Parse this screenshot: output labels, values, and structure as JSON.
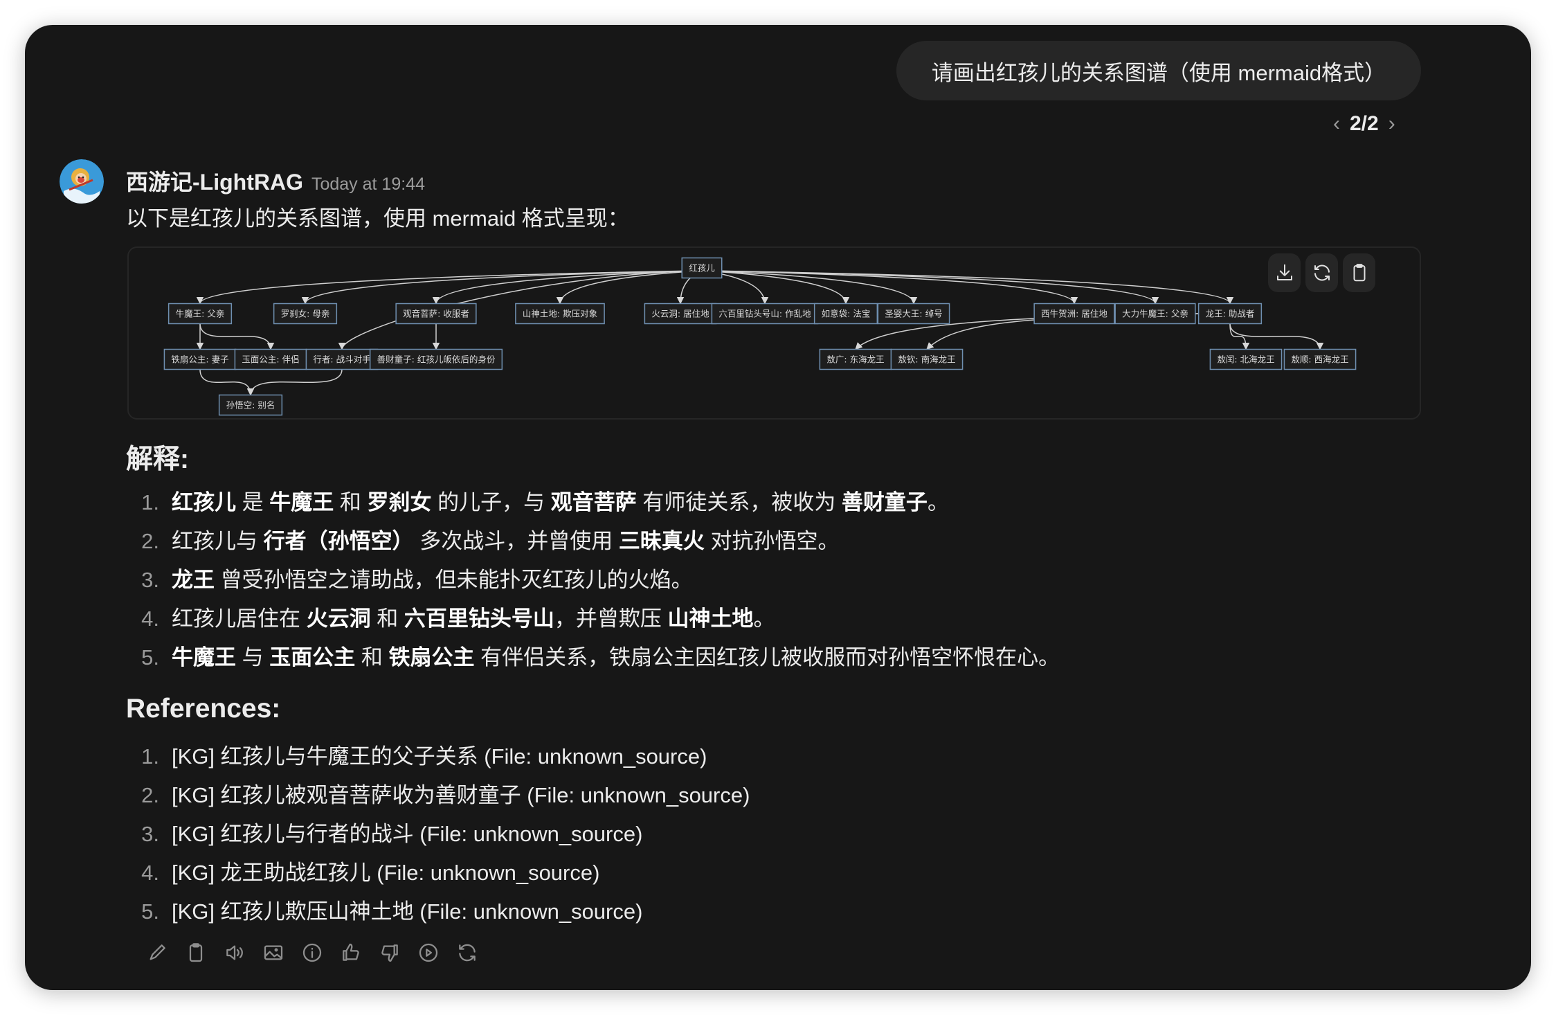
{
  "user_message": "请画出红孩儿的关系图谱（使用 mermaid格式）",
  "pager": {
    "current": "2/2",
    "prev_icon": "chevron-left-icon",
    "next_icon": "chevron-right-icon"
  },
  "assistant": {
    "name": "西游记-LightRAG",
    "timestamp": "Today at 19:44",
    "avatar_icon": "monkey-king-avatar",
    "intro": "以下是红孩儿的关系图谱，使用 mermaid 格式呈现："
  },
  "diagram": {
    "buttons": [
      {
        "icon": "download-icon"
      },
      {
        "icon": "refresh-icon"
      },
      {
        "icon": "clipboard-icon"
      }
    ],
    "nodes": [
      {
        "id": "root",
        "label": "红孩儿"
      },
      {
        "id": "nmw",
        "label": "牛魔王: 父亲"
      },
      {
        "id": "lsn",
        "label": "罗刹女: 母亲"
      },
      {
        "id": "gy",
        "label": "观音菩萨: 收服者"
      },
      {
        "id": "sstd",
        "label": "山神土地: 欺压对象"
      },
      {
        "id": "hyd",
        "label": "火云洞: 居住地"
      },
      {
        "id": "lbl",
        "label": "六百里钻头号山: 作乱地"
      },
      {
        "id": "ryd",
        "label": "如意袋: 法宝"
      },
      {
        "id": "sydw",
        "label": "圣婴大王: 绰号"
      },
      {
        "id": "xnhz",
        "label": "西牛贺洲: 居住地"
      },
      {
        "id": "dlnmw",
        "label": "大力牛魔王: 父亲"
      },
      {
        "id": "lw",
        "label": "龙王: 助战者"
      },
      {
        "id": "tsgz",
        "label": "铁扇公主: 妻子"
      },
      {
        "id": "ymgz",
        "label": "玉面公主: 伴侣"
      },
      {
        "id": "xz",
        "label": "行者: 战斗对手"
      },
      {
        "id": "sctz",
        "label": "善财童子: 红孩儿皈依后的身份"
      },
      {
        "id": "ag",
        "label": "敖广: 东海龙王"
      },
      {
        "id": "aq",
        "label": "敖钦: 南海龙王"
      },
      {
        "id": "ar",
        "label": "敖闰: 北海龙王"
      },
      {
        "id": "as",
        "label": "敖顺: 西海龙王"
      },
      {
        "id": "swk",
        "label": "孙悟空: 别名"
      }
    ],
    "edges": [
      [
        "root",
        "nmw"
      ],
      [
        "root",
        "lsn"
      ],
      [
        "root",
        "xz"
      ],
      [
        "root",
        "gy"
      ],
      [
        "root",
        "sstd"
      ],
      [
        "root",
        "hyd"
      ],
      [
        "root",
        "lbl"
      ],
      [
        "root",
        "ryd"
      ],
      [
        "root",
        "sydw"
      ],
      [
        "root",
        "xnhz"
      ],
      [
        "root",
        "dlnmw"
      ],
      [
        "root",
        "lw"
      ],
      [
        "nmw",
        "tsgz"
      ],
      [
        "nmw",
        "ymgz"
      ],
      [
        "gy",
        "sctz"
      ],
      [
        "tsgz",
        "swk"
      ],
      [
        "xz",
        "swk"
      ],
      [
        "lw",
        "ag"
      ],
      [
        "lw",
        "aq"
      ],
      [
        "lw",
        "ar"
      ],
      [
        "lw",
        "as"
      ]
    ]
  },
  "explanation": {
    "heading": "解释:",
    "items": [
      [
        {
          "t": "红孩儿",
          "b": true
        },
        {
          "t": " 是 "
        },
        {
          "t": "牛魔王",
          "b": true
        },
        {
          "t": " 和 "
        },
        {
          "t": "罗刹女",
          "b": true
        },
        {
          "t": " 的儿子，与 "
        },
        {
          "t": "观音菩萨",
          "b": true
        },
        {
          "t": " 有师徒关系，被收为 "
        },
        {
          "t": "善财童子",
          "b": true
        },
        {
          "t": "。"
        }
      ],
      [
        {
          "t": "红孩儿与 "
        },
        {
          "t": "行者（孙悟空）",
          "b": true
        },
        {
          "t": " 多次战斗，并曾使用 "
        },
        {
          "t": "三昧真火",
          "b": true
        },
        {
          "t": " 对抗孙悟空。"
        }
      ],
      [
        {
          "t": "龙王",
          "b": true
        },
        {
          "t": " 曾受孙悟空之请助战，但未能扑灭红孩儿的火焰。"
        }
      ],
      [
        {
          "t": "红孩儿居住在 "
        },
        {
          "t": "火云洞",
          "b": true
        },
        {
          "t": " 和 "
        },
        {
          "t": "六百里钻头号山",
          "b": true
        },
        {
          "t": "，并曾欺压 "
        },
        {
          "t": "山神土地",
          "b": true
        },
        {
          "t": "。"
        }
      ],
      [
        {
          "t": "牛魔王",
          "b": true
        },
        {
          "t": " 与 "
        },
        {
          "t": "玉面公主",
          "b": true
        },
        {
          "t": " 和 "
        },
        {
          "t": "铁扇公主",
          "b": true
        },
        {
          "t": " 有伴侣关系，铁扇公主因红孩儿被收服而对孙悟空怀恨在心。"
        }
      ]
    ]
  },
  "references": {
    "heading": "References:",
    "items": [
      "[KG] 红孩儿与牛魔王的父子关系 (File: unknown_source)",
      "[KG] 红孩儿被观音菩萨收为善财童子 (File: unknown_source)",
      "[KG] 红孩儿与行者的战斗 (File: unknown_source)",
      "[KG] 龙王助战红孩儿 (File: unknown_source)",
      "[KG] 红孩儿欺压山神土地 (File: unknown_source)"
    ]
  },
  "actions": [
    "edit-icon",
    "copy-icon",
    "read-aloud-icon",
    "image-icon",
    "info-icon",
    "thumbs-up-icon",
    "thumbs-down-icon",
    "play-icon",
    "regenerate-icon"
  ]
}
